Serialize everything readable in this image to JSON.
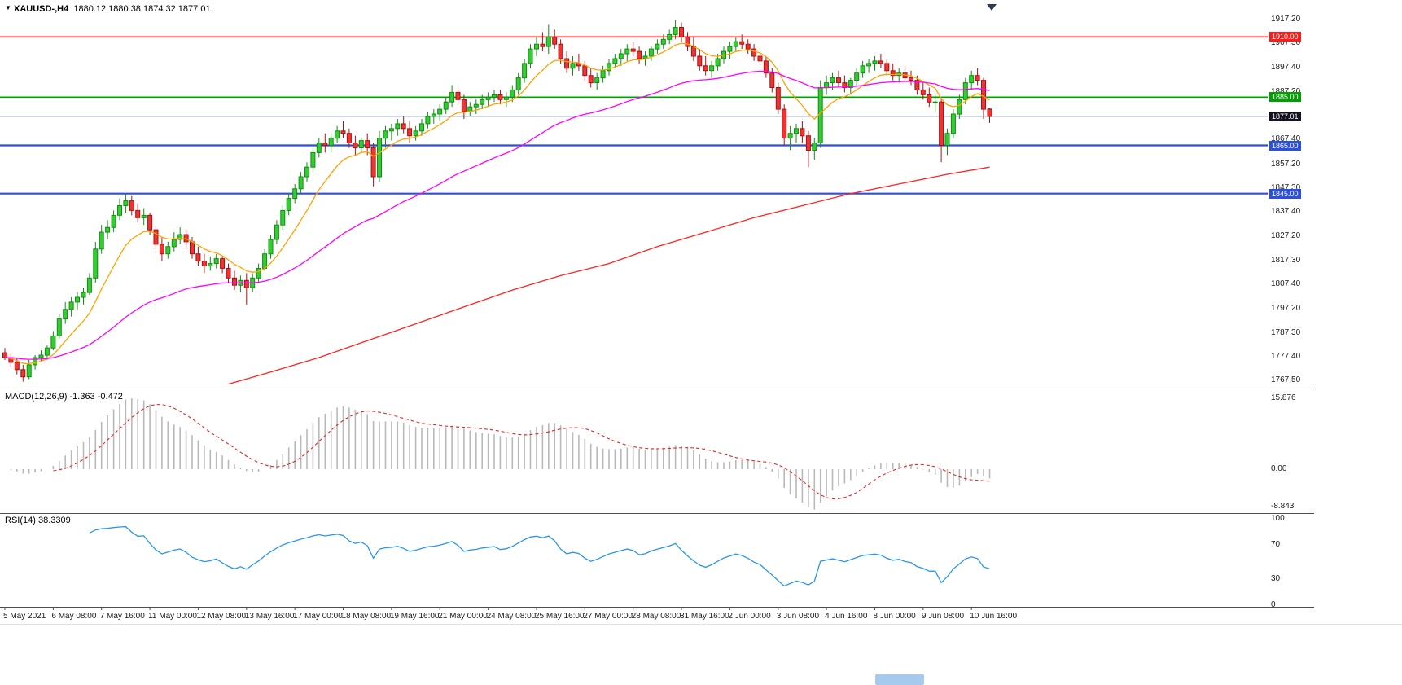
{
  "window": {
    "collapse_icon": "▼",
    "symbol_period": "XAUUSD-,H4",
    "ohlc_text": "1880.12 1880.38 1874.32 1877.01"
  },
  "colors": {
    "up_fill": "#33cc33",
    "up_border": "#0f8f0f",
    "down_fill": "#ee3333",
    "down_border": "#aa1111",
    "ma_fast": "#ffa200",
    "ma_mid": "#ff00ff",
    "ma_slow": "#ff2222",
    "macd_hist": "#b9b9b9",
    "macd_signal": "#e02828",
    "rsi_line": "#2a96e8",
    "bid_line": "#9fb0c8",
    "bid_label_bg": "#13131f",
    "separator": "#4d4d4d"
  },
  "main_chart": {
    "price_axis_labels": [
      {
        "text": "1917.20",
        "price": 1917.2
      },
      {
        "text": "1907.30",
        "price": 1907.3
      },
      {
        "text": "1897.40",
        "price": 1897.4
      },
      {
        "text": "1887.20",
        "price": 1887.2
      },
      {
        "text": "1877.40",
        "price": 1877.4
      },
      {
        "text": "1867.40",
        "price": 1867.4
      },
      {
        "text": "1857.20",
        "price": 1857.2
      },
      {
        "text": "1847.30",
        "price": 1847.3
      },
      {
        "text": "1837.40",
        "price": 1837.4
      },
      {
        "text": "1827.20",
        "price": 1827.2
      },
      {
        "text": "1817.30",
        "price": 1817.3
      },
      {
        "text": "1807.40",
        "price": 1807.4
      },
      {
        "text": "1797.20",
        "price": 1797.2
      },
      {
        "text": "1787.30",
        "price": 1787.3
      },
      {
        "text": "1777.40",
        "price": 1777.4
      },
      {
        "text": "1767.50",
        "price": 1767.5
      }
    ],
    "hlines": [
      {
        "label": "1910.00",
        "price": 1910.0,
        "color": "#ff1a1a",
        "width": 1.6
      },
      {
        "label": "1885.00",
        "price": 1885.0,
        "color": "#00a000",
        "width": 1.6
      },
      {
        "label": "1865.00",
        "price": 1865.0,
        "color": "#2b50e0",
        "width": 2.2
      },
      {
        "label": "1845.00",
        "price": 1845.0,
        "color": "#2b50e0",
        "width": 2.2
      }
    ],
    "bid": {
      "label": "1877.01",
      "price": 1877.01
    }
  },
  "chart_data": {
    "type": "candlestick",
    "symbol": "XAUUSD-",
    "timeframe": "H4",
    "ylim": [
      1765.5,
      1919.0
    ],
    "x_axis": {
      "label_step": 8,
      "labels": [
        "5 May 2021",
        "6 May 08:00",
        "7 May 16:00",
        "11 May 00:00",
        "12 May 08:00",
        "13 May 16:00",
        "17 May 00:00",
        "18 May 08:00",
        "19 May 16:00",
        "21 May 00:00",
        "24 May 08:00",
        "25 May 16:00",
        "27 May 00:00",
        "28 May 08:00",
        "31 May 16:00",
        "2 Jun 00:00",
        "3 Jun 08:00",
        "4 Jun 16:00",
        "8 Jun 00:00",
        "9 Jun 08:00",
        "10 Jun 16:00"
      ]
    },
    "candles": [
      [
        1779,
        1781,
        1776,
        1777
      ],
      [
        1777,
        1779,
        1773,
        1775
      ],
      [
        1775,
        1777,
        1770,
        1772
      ],
      [
        1772,
        1774,
        1767,
        1769
      ],
      [
        1769,
        1776,
        1768,
        1774
      ],
      [
        1774,
        1778,
        1772,
        1777
      ],
      [
        1777,
        1780,
        1775,
        1778
      ],
      [
        1778,
        1782,
        1776,
        1781
      ],
      [
        1781,
        1788,
        1780,
        1786
      ],
      [
        1786,
        1795,
        1785,
        1793
      ],
      [
        1793,
        1800,
        1791,
        1797
      ],
      [
        1797,
        1802,
        1794,
        1800
      ],
      [
        1800,
        1804,
        1797,
        1802
      ],
      [
        1802,
        1806,
        1799,
        1804
      ],
      [
        1804,
        1812,
        1803,
        1810
      ],
      [
        1810,
        1825,
        1808,
        1822
      ],
      [
        1822,
        1832,
        1820,
        1829
      ],
      [
        1829,
        1834,
        1826,
        1831
      ],
      [
        1831,
        1838,
        1829,
        1836
      ],
      [
        1836,
        1843,
        1834,
        1840
      ],
      [
        1840,
        1845,
        1837,
        1842
      ],
      [
        1842,
        1844,
        1836,
        1838
      ],
      [
        1838,
        1841,
        1833,
        1835
      ],
      [
        1835,
        1839,
        1832,
        1836
      ],
      [
        1836,
        1837,
        1828,
        1830
      ],
      [
        1830,
        1832,
        1822,
        1824
      ],
      [
        1824,
        1827,
        1817,
        1820
      ],
      [
        1820,
        1825,
        1818,
        1823
      ],
      [
        1823,
        1829,
        1821,
        1826
      ],
      [
        1826,
        1831,
        1824,
        1828
      ],
      [
        1828,
        1830,
        1822,
        1825
      ],
      [
        1825,
        1827,
        1818,
        1820
      ],
      [
        1820,
        1823,
        1815,
        1817
      ],
      [
        1817,
        1820,
        1812,
        1815
      ],
      [
        1815,
        1819,
        1813,
        1816
      ],
      [
        1816,
        1820,
        1814,
        1818
      ],
      [
        1818,
        1819,
        1812,
        1814
      ],
      [
        1814,
        1816,
        1808,
        1810
      ],
      [
        1810,
        1813,
        1805,
        1807
      ],
      [
        1807,
        1811,
        1804,
        1809
      ],
      [
        1809,
        1812,
        1799,
        1806
      ],
      [
        1806,
        1812,
        1804,
        1810
      ],
      [
        1810,
        1816,
        1808,
        1814
      ],
      [
        1814,
        1822,
        1813,
        1820
      ],
      [
        1820,
        1828,
        1818,
        1826
      ],
      [
        1826,
        1834,
        1824,
        1832
      ],
      [
        1832,
        1840,
        1830,
        1838
      ],
      [
        1838,
        1845,
        1836,
        1843
      ],
      [
        1843,
        1849,
        1841,
        1847
      ],
      [
        1847,
        1854,
        1845,
        1852
      ],
      [
        1852,
        1858,
        1850,
        1856
      ],
      [
        1856,
        1864,
        1854,
        1862
      ],
      [
        1862,
        1868,
        1860,
        1866
      ],
      [
        1866,
        1870,
        1862,
        1865
      ],
      [
        1865,
        1870,
        1862,
        1868
      ],
      [
        1868,
        1873,
        1866,
        1871
      ],
      [
        1871,
        1875,
        1868,
        1870
      ],
      [
        1870,
        1872,
        1864,
        1866
      ],
      [
        1866,
        1869,
        1861,
        1864
      ],
      [
        1864,
        1868,
        1862,
        1867
      ],
      [
        1867,
        1870,
        1861,
        1864
      ],
      [
        1864,
        1866,
        1848,
        1852
      ],
      [
        1852,
        1871,
        1850,
        1868
      ],
      [
        1868,
        1873,
        1864,
        1871
      ],
      [
        1871,
        1874,
        1867,
        1872
      ],
      [
        1872,
        1876,
        1869,
        1874
      ],
      [
        1874,
        1877,
        1870,
        1872
      ],
      [
        1872,
        1875,
        1866,
        1869
      ],
      [
        1869,
        1873,
        1867,
        1871
      ],
      [
        1871,
        1876,
        1869,
        1874
      ],
      [
        1874,
        1879,
        1872,
        1877
      ],
      [
        1877,
        1880,
        1874,
        1878
      ],
      [
        1878,
        1882,
        1875,
        1880
      ],
      [
        1880,
        1885,
        1878,
        1883
      ],
      [
        1883,
        1890,
        1881,
        1887
      ],
      [
        1887,
        1889,
        1882,
        1884
      ],
      [
        1884,
        1886,
        1876,
        1879
      ],
      [
        1879,
        1883,
        1877,
        1881
      ],
      [
        1881,
        1884,
        1878,
        1882
      ],
      [
        1882,
        1886,
        1880,
        1884
      ],
      [
        1884,
        1887,
        1881,
        1885
      ],
      [
        1885,
        1888,
        1883,
        1886
      ],
      [
        1886,
        1888,
        1882,
        1884
      ],
      [
        1884,
        1887,
        1881,
        1885
      ],
      [
        1885,
        1890,
        1883,
        1888
      ],
      [
        1888,
        1895,
        1886,
        1893
      ],
      [
        1893,
        1901,
        1891,
        1899
      ],
      [
        1899,
        1907,
        1897,
        1905
      ],
      [
        1905,
        1910,
        1902,
        1907
      ],
      [
        1907,
        1912,
        1904,
        1906
      ],
      [
        1906,
        1915,
        1903,
        1910
      ],
      [
        1910,
        1913,
        1905,
        1907
      ],
      [
        1907,
        1909,
        1899,
        1901
      ],
      [
        1901,
        1904,
        1895,
        1897
      ],
      [
        1897,
        1902,
        1894,
        1899
      ],
      [
        1899,
        1903,
        1896,
        1898
      ],
      [
        1898,
        1900,
        1892,
        1894
      ],
      [
        1894,
        1897,
        1889,
        1891
      ],
      [
        1891,
        1895,
        1888,
        1893
      ],
      [
        1893,
        1898,
        1891,
        1896
      ],
      [
        1896,
        1901,
        1894,
        1899
      ],
      [
        1899,
        1903,
        1897,
        1901
      ],
      [
        1901,
        1905,
        1898,
        1903
      ],
      [
        1903,
        1907,
        1900,
        1905
      ],
      [
        1905,
        1908,
        1902,
        1904
      ],
      [
        1904,
        1906,
        1899,
        1901
      ],
      [
        1901,
        1904,
        1898,
        1902
      ],
      [
        1902,
        1906,
        1900,
        1905
      ],
      [
        1905,
        1909,
        1903,
        1907
      ],
      [
        1907,
        1911,
        1905,
        1909
      ],
      [
        1909,
        1913,
        1907,
        1911
      ],
      [
        1911,
        1917,
        1909,
        1914
      ],
      [
        1914,
        1916,
        1908,
        1910
      ],
      [
        1910,
        1912,
        1904,
        1906
      ],
      [
        1906,
        1910,
        1900,
        1902
      ],
      [
        1902,
        1905,
        1896,
        1898
      ],
      [
        1898,
        1902,
        1894,
        1896
      ],
      [
        1896,
        1900,
        1893,
        1898
      ],
      [
        1898,
        1903,
        1896,
        1901
      ],
      [
        1901,
        1906,
        1899,
        1904
      ],
      [
        1904,
        1908,
        1901,
        1906
      ],
      [
        1906,
        1910,
        1904,
        1908
      ],
      [
        1908,
        1911,
        1905,
        1907
      ],
      [
        1907,
        1909,
        1903,
        1905
      ],
      [
        1905,
        1907,
        1900,
        1902
      ],
      [
        1902,
        1904,
        1898,
        1900
      ],
      [
        1900,
        1902,
        1893,
        1895
      ],
      [
        1895,
        1897,
        1887,
        1889
      ],
      [
        1889,
        1891,
        1878,
        1880
      ],
      [
        1880,
        1882,
        1865,
        1868
      ],
      [
        1868,
        1873,
        1863,
        1870
      ],
      [
        1870,
        1874,
        1866,
        1872
      ],
      [
        1872,
        1875,
        1866,
        1869
      ],
      [
        1869,
        1871,
        1856,
        1863
      ],
      [
        1863,
        1868,
        1859,
        1866
      ],
      [
        1866,
        1892,
        1864,
        1889
      ],
      [
        1889,
        1894,
        1886,
        1891
      ],
      [
        1891,
        1895,
        1888,
        1893
      ],
      [
        1893,
        1896,
        1889,
        1891
      ],
      [
        1891,
        1894,
        1887,
        1889
      ],
      [
        1889,
        1893,
        1886,
        1892
      ],
      [
        1892,
        1897,
        1890,
        1895
      ],
      [
        1895,
        1900,
        1893,
        1898
      ],
      [
        1898,
        1901,
        1895,
        1899
      ],
      [
        1899,
        1902,
        1896,
        1900
      ],
      [
        1900,
        1903,
        1897,
        1899
      ],
      [
        1899,
        1901,
        1894,
        1896
      ],
      [
        1896,
        1899,
        1892,
        1894
      ],
      [
        1894,
        1897,
        1891,
        1895
      ],
      [
        1895,
        1898,
        1892,
        1893
      ],
      [
        1893,
        1896,
        1890,
        1892
      ],
      [
        1892,
        1894,
        1886,
        1888
      ],
      [
        1888,
        1891,
        1884,
        1886
      ],
      [
        1886,
        1889,
        1881,
        1883
      ],
      [
        1883,
        1886,
        1879,
        1883
      ],
      [
        1883,
        1884,
        1858,
        1865
      ],
      [
        1865,
        1872,
        1861,
        1870
      ],
      [
        1870,
        1880,
        1868,
        1878
      ],
      [
        1878,
        1886,
        1876,
        1884
      ],
      [
        1884,
        1893,
        1882,
        1891
      ],
      [
        1891,
        1896,
        1888,
        1894
      ],
      [
        1894,
        1897,
        1890,
        1892
      ],
      [
        1892,
        1893,
        1876,
        1880
      ],
      [
        1880.12,
        1880.38,
        1874.32,
        1877.01
      ]
    ],
    "overlays": {
      "ma_fast_period": 10,
      "ma_mid_period": 48,
      "ma_slow_points": [
        [
          37,
          1766
        ],
        [
          44,
          1771
        ],
        [
          52,
          1777
        ],
        [
          60,
          1784
        ],
        [
          68,
          1791
        ],
        [
          76,
          1798
        ],
        [
          84,
          1805
        ],
        [
          92,
          1811
        ],
        [
          100,
          1816
        ],
        [
          108,
          1823
        ],
        [
          116,
          1829
        ],
        [
          124,
          1835
        ],
        [
          132,
          1840
        ],
        [
          140,
          1845
        ],
        [
          148,
          1849
        ],
        [
          156,
          1853
        ],
        [
          163,
          1856
        ]
      ]
    }
  },
  "macd_panel": {
    "label": "MACD(12,26,9)",
    "values": "-1.363 -0.472",
    "axis_labels": [
      {
        "text": "15.876",
        "anchor": "max"
      },
      {
        "text": "0.00",
        "anchor": "zero"
      },
      {
        "text": "-8.843",
        "anchor": "min"
      }
    ]
  },
  "rsi_panel": {
    "label": "RSI(14)",
    "value": "38.3309",
    "axis_labels": [
      {
        "text": "100",
        "value": 100
      },
      {
        "text": "70",
        "value": 70
      },
      {
        "text": "30",
        "value": 30
      },
      {
        "text": "0",
        "value": 0
      }
    ]
  }
}
